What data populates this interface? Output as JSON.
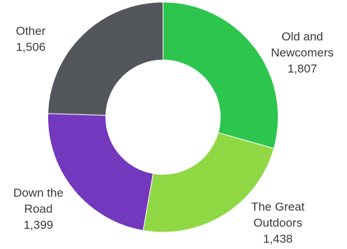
{
  "chart_data": {
    "type": "pie",
    "variant": "donut",
    "slices": [
      {
        "label_lines": [
          "Old and",
          "Newcomers"
        ],
        "value_text": "1,807",
        "value": 1807,
        "color": "#2ec54f"
      },
      {
        "label_lines": [
          "The Great",
          "Outdoors"
        ],
        "value_text": "1,438",
        "value": 1438,
        "color": "#8fd843"
      },
      {
        "label_lines": [
          "Down the",
          "Road"
        ],
        "value_text": "1,399",
        "value": 1399,
        "color": "#7338bd"
      },
      {
        "label_lines": [
          "Other"
        ],
        "value_text": "1,506",
        "value": 1506,
        "color": "#53565b"
      }
    ],
    "start": "12 o'clock",
    "direction": "clockwise",
    "legend": "none"
  }
}
